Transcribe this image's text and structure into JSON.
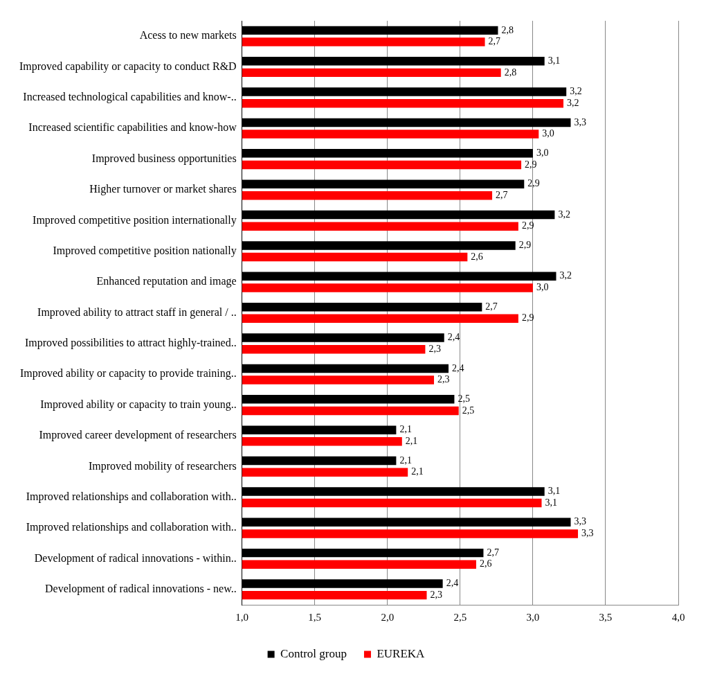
{
  "chart_data": {
    "type": "bar",
    "orientation": "horizontal",
    "categories": [
      "Acess to new markets",
      "Improved capability or capacity to conduct R&D",
      "Increased technological capabilities and know-..",
      "Increased scientific capabilities and know-how",
      "Improved business opportunities",
      "Higher turnover or market shares",
      "Improved competitive position internationally",
      "Improved competitive position nationally",
      "Enhanced reputation and image",
      "Improved ability to attract staff in general / ..",
      "Improved possibilities to attract highly-trained..",
      "Improved ability or capacity to provide training..",
      "Improved ability or capacity to train young..",
      "Improved career development of researchers",
      "Improved mobility of researchers",
      "Improved relationships and collaboration with..",
      "Improved relationships and collaboration with..",
      "Development of radical innovations - within..",
      "Development of radical innovations - new.."
    ],
    "series": [
      {
        "name": "Control group",
        "color": "#000000",
        "values": [
          2.76,
          3.08,
          3.23,
          3.26,
          3.0,
          2.94,
          3.15,
          2.88,
          3.16,
          2.65,
          2.39,
          2.42,
          2.46,
          2.06,
          2.06,
          3.08,
          3.26,
          2.66,
          2.38
        ],
        "value_labels": [
          "2,8",
          "3,1",
          "3,2",
          "3,3",
          "3,0",
          "2,9",
          "3,2",
          "2,9",
          "3,2",
          "2,7",
          "2,4",
          "2,4",
          "2,5",
          "2,1",
          "2,1",
          "3,1",
          "3,3",
          "2,7",
          "2,4"
        ]
      },
      {
        "name": "EUREKA",
        "color": "#ff0000",
        "values": [
          2.67,
          2.78,
          3.21,
          3.04,
          2.92,
          2.72,
          2.9,
          2.55,
          3.0,
          2.9,
          2.26,
          2.32,
          2.49,
          2.1,
          2.14,
          3.06,
          3.31,
          2.61,
          2.27
        ],
        "value_labels": [
          "2,7",
          "2,8",
          "3,2",
          "3,0",
          "2,9",
          "2,7",
          "2,9",
          "2,6",
          "3,0",
          "2,9",
          "2,3",
          "2,3",
          "2,5",
          "2,1",
          "2,1",
          "3,1",
          "3,3",
          "2,6",
          "2,3"
        ]
      }
    ],
    "xlim": [
      1,
      4
    ],
    "xticks": [
      {
        "value": 1,
        "label": "1,0"
      },
      {
        "value": 1.5,
        "label": "1,5"
      },
      {
        "value": 2,
        "label": "2,0"
      },
      {
        "value": 2.5,
        "label": "2,5"
      },
      {
        "value": 3,
        "label": "3,0"
      },
      {
        "value": 3.5,
        "label": "3,5"
      },
      {
        "value": 4,
        "label": "4,0"
      }
    ],
    "grid": "x",
    "legend": "bottom"
  }
}
